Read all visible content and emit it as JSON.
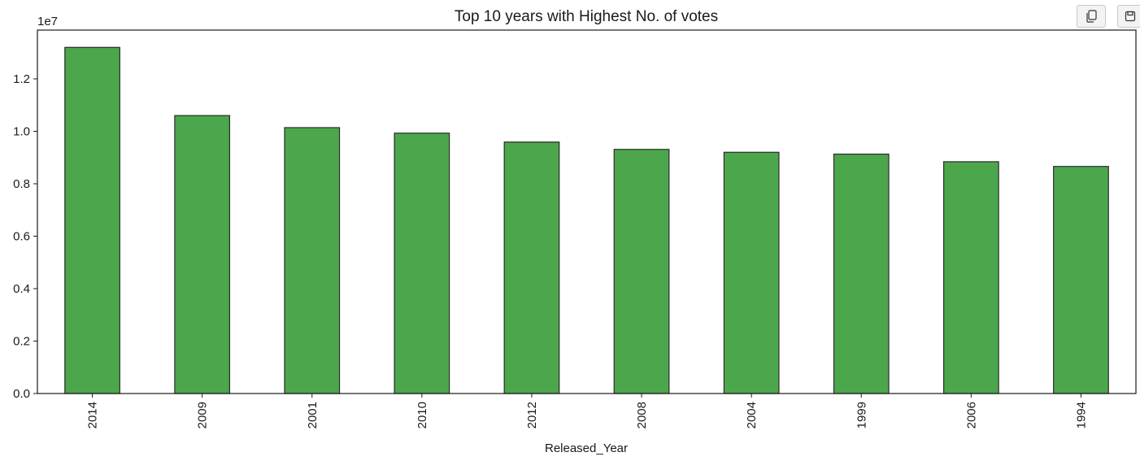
{
  "toolbar": {
    "copy_icon": "copy-icon",
    "save_icon": "save-icon"
  },
  "colors": {
    "bar_fill": "#4ca64c",
    "bar_edge": "#2b2b2b"
  },
  "chart_data": {
    "type": "bar",
    "title": "Top 10 years with Highest No. of votes",
    "xlabel": "Released_Year",
    "ylabel": "",
    "offset_text": "1e7",
    "categories": [
      "2014",
      "2009",
      "2001",
      "2010",
      "2012",
      "2008",
      "2004",
      "1999",
      "2006",
      "1994"
    ],
    "values": [
      13200000,
      10600000,
      10140000,
      9930000,
      9590000,
      9310000,
      9200000,
      9130000,
      8840000,
      8660000
    ],
    "ylim": [
      0,
      13860000
    ],
    "yticks": [
      0,
      2000000,
      4000000,
      6000000,
      8000000,
      10000000,
      12000000
    ],
    "yticklabels": [
      "0.0",
      "0.2",
      "0.4",
      "0.6",
      "0.8",
      "1.0",
      "1.2"
    ],
    "grid": false,
    "legend": "none"
  }
}
